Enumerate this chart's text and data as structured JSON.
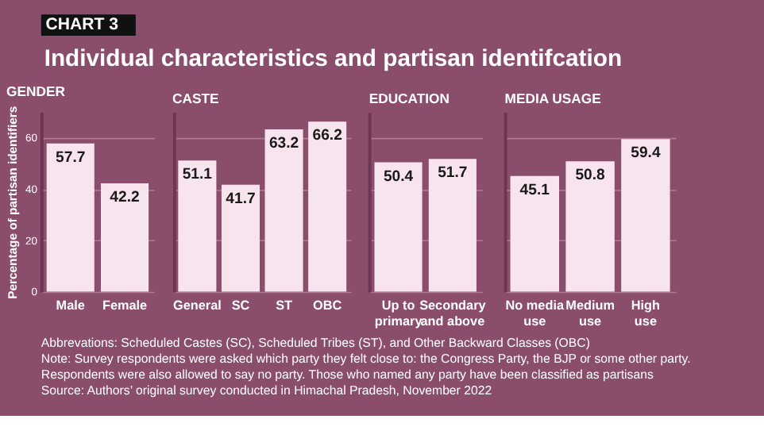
{
  "chart_data": [
    {
      "type": "other",
      "subtitle": "CHART 3",
      "title": "Individual characteristics and partisan identifcation"
    },
    {
      "type": "bar",
      "title": "GENDER",
      "ylabel": "Percentage of partisan identifiers",
      "categories": [
        "Male",
        "Female"
      ],
      "values": [
        57.7,
        42.2
      ],
      "color": "#f8e4ef",
      "ylim": [
        0,
        70
      ],
      "yticks": [
        0,
        20,
        40,
        60
      ],
      "grid": "y",
      "data_labels": true
    },
    {
      "type": "bar",
      "title": "CASTE",
      "categories": [
        "General",
        "SC",
        "ST",
        "OBC"
      ],
      "values": [
        51.1,
        41.7,
        63.2,
        66.2
      ],
      "color": "#f8e4ef",
      "ylim": [
        0,
        70
      ],
      "yticks": [
        0,
        20,
        40,
        60
      ],
      "grid": "y",
      "data_labels": true,
      "tick_labels": "x"
    },
    {
      "type": "bar",
      "title": "EDUCATION",
      "categories": [
        "Up to primary",
        "Secondary and above"
      ],
      "values": [
        50.4,
        51.7
      ],
      "color": "#f8e4ef",
      "ylim": [
        0,
        70
      ],
      "yticks": [
        0,
        20,
        40,
        60
      ],
      "grid": "y",
      "data_labels": true,
      "tick_labels": "x"
    },
    {
      "type": "bar",
      "title": "MEDIA USAGE",
      "categories": [
        "No media use",
        "Medium use",
        "High use"
      ],
      "values": [
        45.1,
        50.8,
        59.4
      ],
      "color": "#f8e4ef",
      "ylim": [
        0,
        70
      ],
      "yticks": [
        0,
        20,
        40,
        60
      ],
      "grid": "y",
      "data_labels": true,
      "tick_labels": "x"
    },
    {
      "type": "other",
      "annotations": [
        "Abbrevations: Scheduled Castes (SC), Scheduled Tribes (ST), and Other Backward Classes (OBC)",
        "Note: Survey respondents were asked which party they felt close to: the Congress Party, the BJP or some other party.",
        "Respondents were also allowed to say no party. Those who named any party have been classified as partisans",
        "Source: Authors’ original survey conducted in Himachal Pradesh, November 2022"
      ]
    }
  ]
}
